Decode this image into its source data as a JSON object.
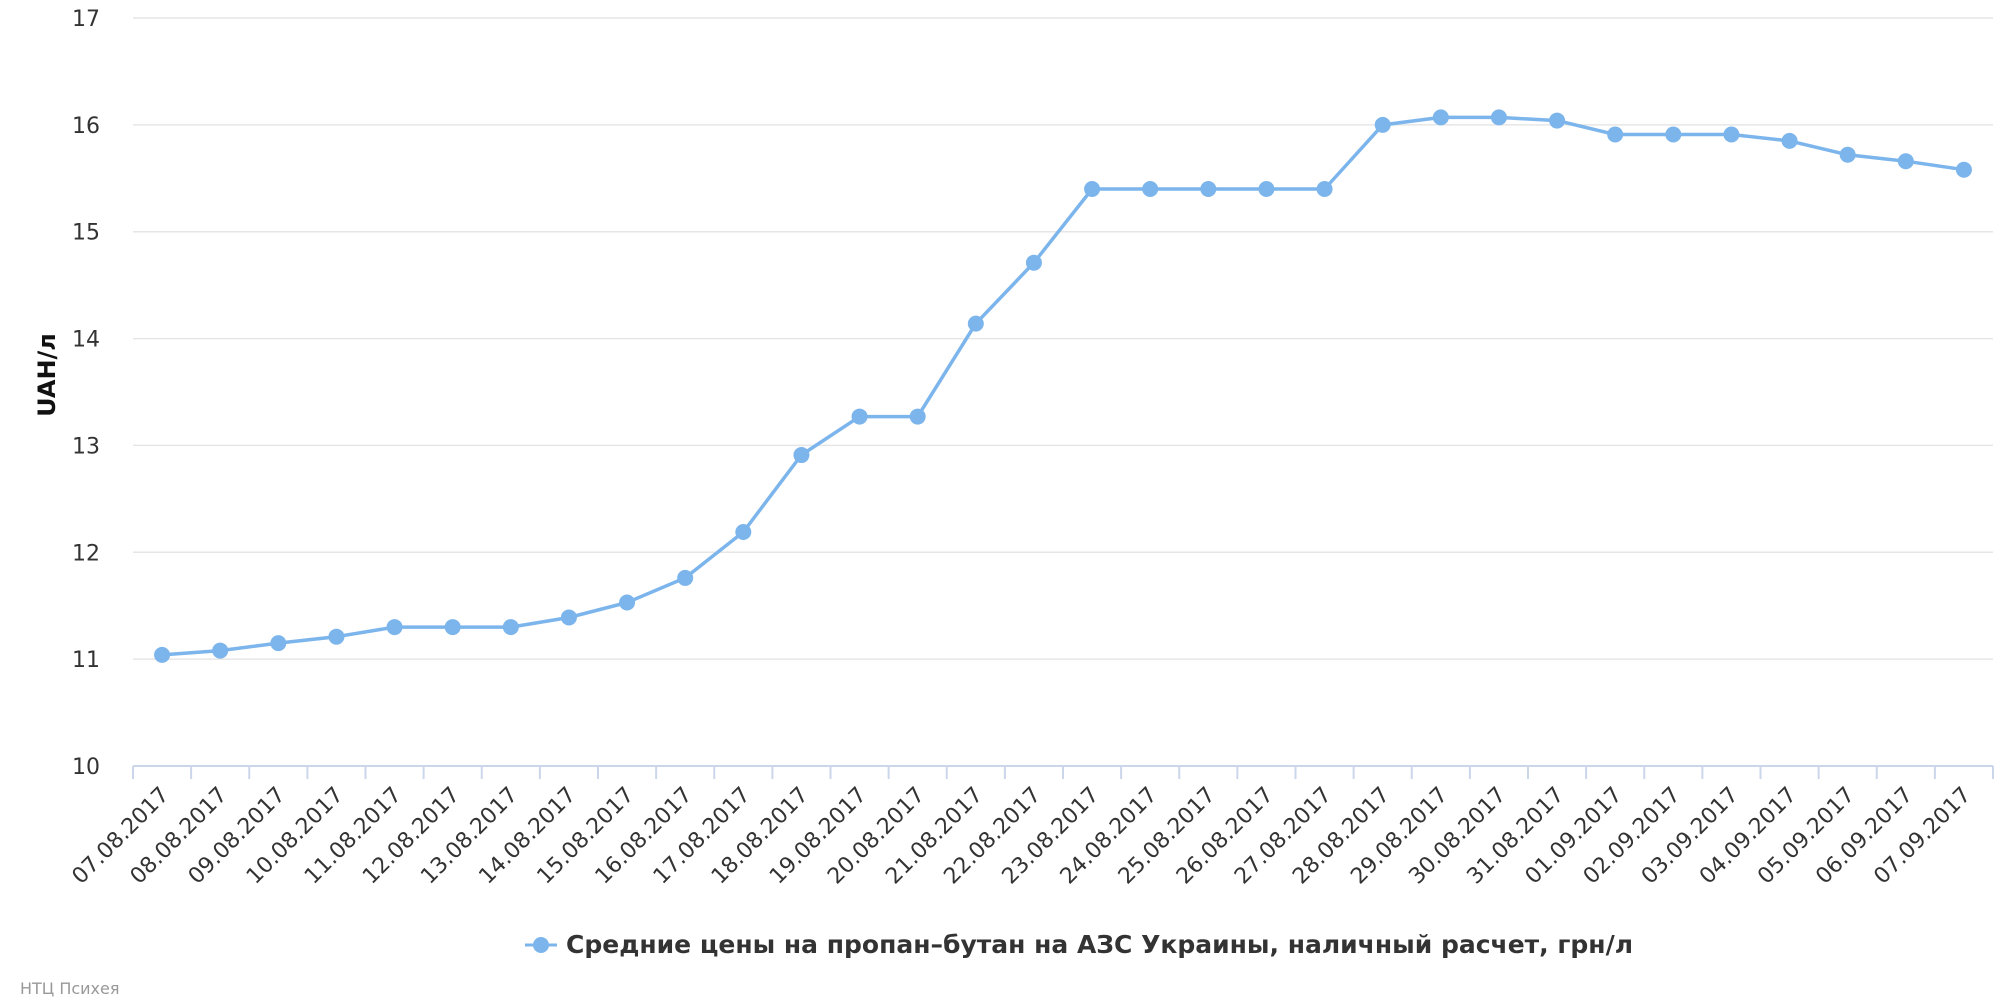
{
  "chart_data": {
    "type": "line",
    "title": "",
    "xlabel": "",
    "ylabel": "UAH/л",
    "ylim": [
      10,
      17
    ],
    "yticks": [
      10,
      11,
      12,
      13,
      14,
      15,
      16,
      17
    ],
    "grid": true,
    "legend_position": "bottom-center",
    "categories": [
      "07.08.2017",
      "08.08.2017",
      "09.08.2017",
      "10.08.2017",
      "11.08.2017",
      "12.08.2017",
      "13.08.2017",
      "14.08.2017",
      "15.08.2017",
      "16.08.2017",
      "17.08.2017",
      "18.08.2017",
      "19.08.2017",
      "20.08.2017",
      "21.08.2017",
      "22.08.2017",
      "23.08.2017",
      "24.08.2017",
      "25.08.2017",
      "26.08.2017",
      "27.08.2017",
      "28.08.2017",
      "29.08.2017",
      "30.08.2017",
      "31.08.2017",
      "01.09.2017",
      "02.09.2017",
      "03.09.2017",
      "04.09.2017",
      "05.09.2017",
      "06.09.2017",
      "07.09.2017"
    ],
    "series": [
      {
        "name": "Средние цены на пропан–бутан на АЗС Украины, наличный расчет, грн/л",
        "color": "#7cb5ec",
        "values": [
          11.04,
          11.08,
          11.15,
          11.21,
          11.3,
          11.3,
          11.3,
          11.39,
          11.53,
          11.76,
          12.19,
          12.91,
          13.27,
          13.27,
          14.14,
          14.71,
          15.4,
          15.4,
          15.4,
          15.4,
          15.4,
          16.0,
          16.07,
          16.07,
          16.04,
          15.91,
          15.91,
          15.91,
          15.85,
          15.72,
          15.66,
          15.58
        ]
      }
    ]
  },
  "credits": "НТЦ Психея",
  "colors": {
    "series": "#7cb5ec",
    "grid": "#e6e6e6",
    "axis": "#ccd6eb"
  }
}
